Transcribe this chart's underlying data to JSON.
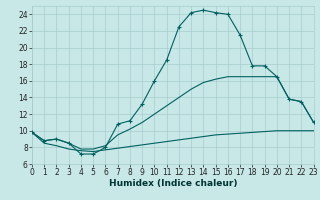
{
  "xlabel": "Humidex (Indice chaleur)",
  "bg_color": "#c8e8e8",
  "grid_color": "#a8cccc",
  "line_color": "#006060",
  "xlim": [
    0,
    23
  ],
  "ylim": [
    6,
    25
  ],
  "xticks": [
    0,
    1,
    2,
    3,
    4,
    5,
    6,
    7,
    8,
    9,
    10,
    11,
    12,
    13,
    14,
    15,
    16,
    17,
    18,
    19,
    20,
    21,
    22,
    23
  ],
  "yticks": [
    6,
    8,
    10,
    12,
    14,
    16,
    18,
    20,
    22,
    24
  ],
  "s1_x": [
    0,
    1,
    2,
    3,
    4,
    5,
    6,
    7,
    8,
    9,
    10,
    11,
    12,
    13,
    14,
    15,
    16,
    17,
    18,
    19,
    20,
    21,
    22,
    23
  ],
  "s1_y": [
    9.8,
    8.8,
    9.0,
    8.5,
    7.2,
    7.2,
    8.0,
    10.8,
    11.2,
    13.2,
    16.0,
    18.5,
    22.5,
    24.2,
    24.5,
    24.2,
    24.0,
    21.5,
    17.8,
    17.8,
    16.5,
    13.8,
    13.5,
    11.0
  ],
  "s2_x": [
    0,
    1,
    2,
    3,
    4,
    5,
    6,
    7,
    8,
    9,
    10,
    11,
    12,
    13,
    14,
    15,
    16,
    17,
    18,
    19,
    20,
    21,
    22,
    23
  ],
  "s2_y": [
    9.8,
    8.5,
    8.2,
    7.8,
    7.6,
    7.5,
    7.7,
    7.9,
    8.1,
    8.3,
    8.5,
    8.7,
    8.9,
    9.1,
    9.3,
    9.5,
    9.6,
    9.7,
    9.8,
    9.9,
    10.0,
    10.0,
    10.0,
    10.0
  ],
  "s3_x": [
    0,
    1,
    2,
    3,
    4,
    5,
    6,
    7,
    8,
    9,
    10,
    11,
    12,
    13,
    14,
    15,
    16,
    17,
    18,
    19,
    20,
    21,
    22,
    23
  ],
  "s3_y": [
    9.8,
    8.8,
    9.0,
    8.5,
    7.8,
    7.8,
    8.2,
    9.5,
    10.2,
    11.0,
    12.0,
    13.0,
    14.0,
    15.0,
    15.8,
    16.2,
    16.5,
    16.5,
    16.5,
    16.5,
    16.5,
    13.8,
    13.5,
    11.0
  ],
  "xlabel_fontsize": 6.5,
  "tick_fontsize": 5.5
}
